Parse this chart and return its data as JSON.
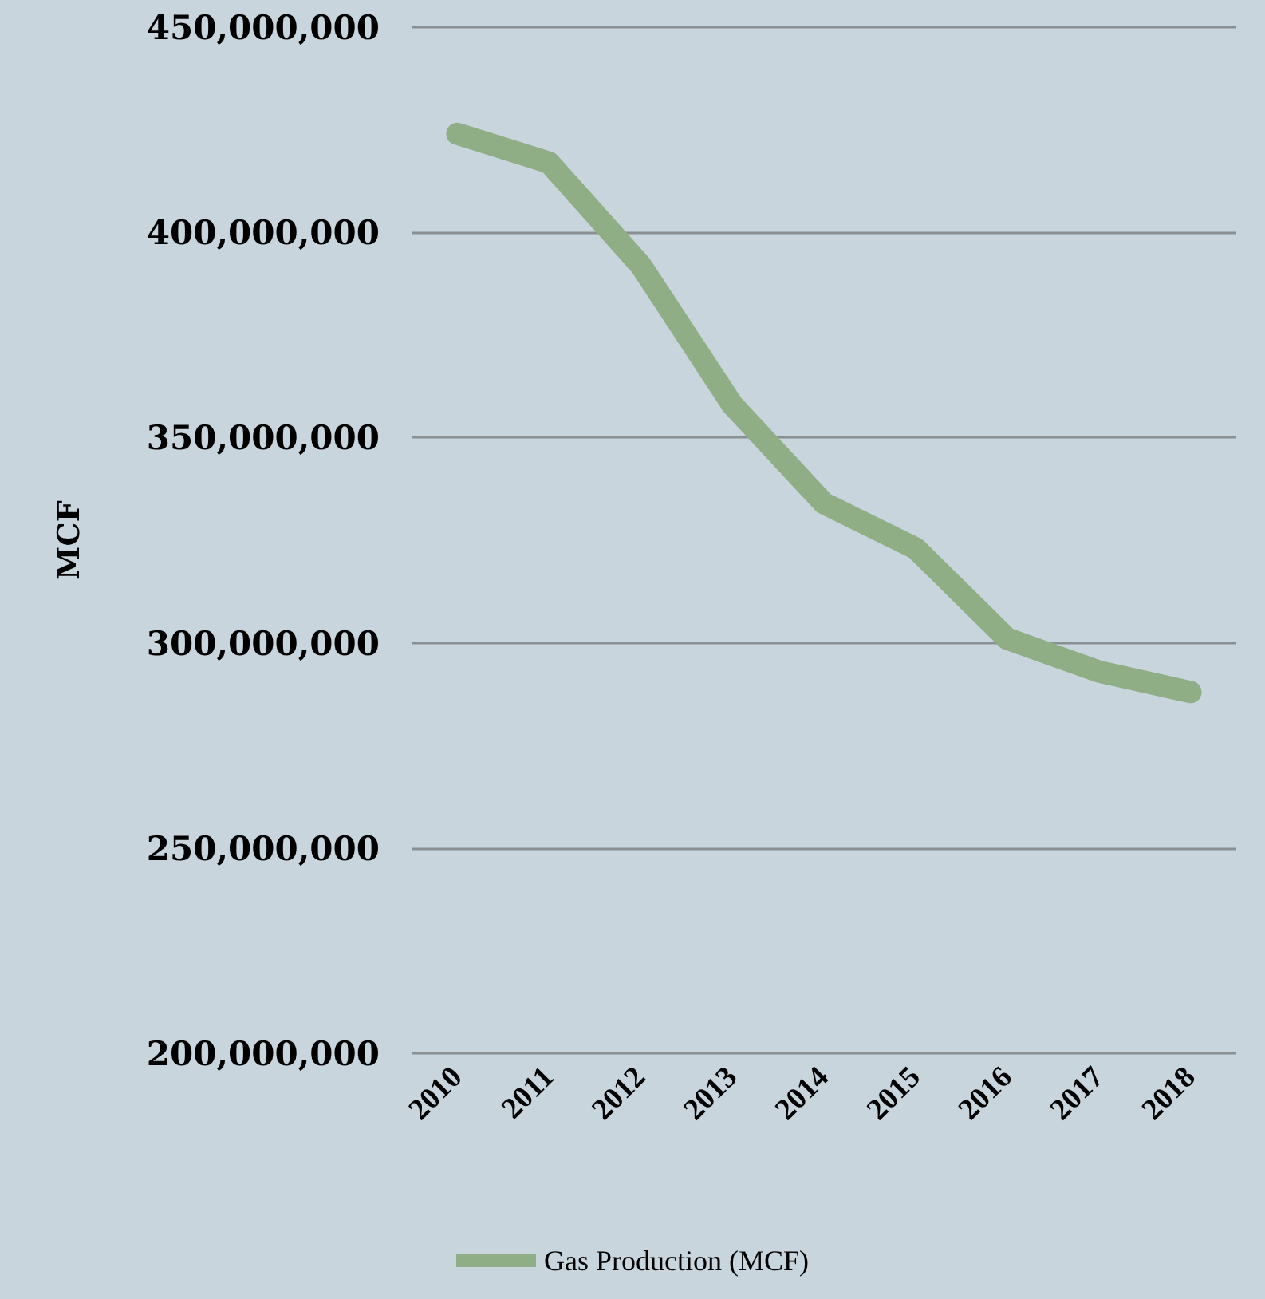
{
  "chart_data": {
    "type": "line",
    "ylabel": "MCF",
    "categories": [
      "2010",
      "2011",
      "2012",
      "2013",
      "2014",
      "2015",
      "2016",
      "2017",
      "2018"
    ],
    "series": [
      {
        "name": "Gas Production (MCF)",
        "color": "#8fae86",
        "values": [
          424000000,
          417000000,
          392000000,
          358000000,
          334000000,
          323000000,
          301000000,
          293000000,
          288000000
        ]
      }
    ],
    "ylim": [
      200000000,
      450000000
    ],
    "yticks": [
      {
        "value": 200000000,
        "label": "200,000,000"
      },
      {
        "value": 250000000,
        "label": "250,000,000"
      },
      {
        "value": 300000000,
        "label": "300,000,000"
      },
      {
        "value": 350000000,
        "label": "350,000,000"
      },
      {
        "value": 400000000,
        "label": "400,000,000"
      },
      {
        "value": 450000000,
        "label": "450,000,000"
      }
    ],
    "grid": "y",
    "legend": "bottom",
    "line_style": "solid"
  }
}
